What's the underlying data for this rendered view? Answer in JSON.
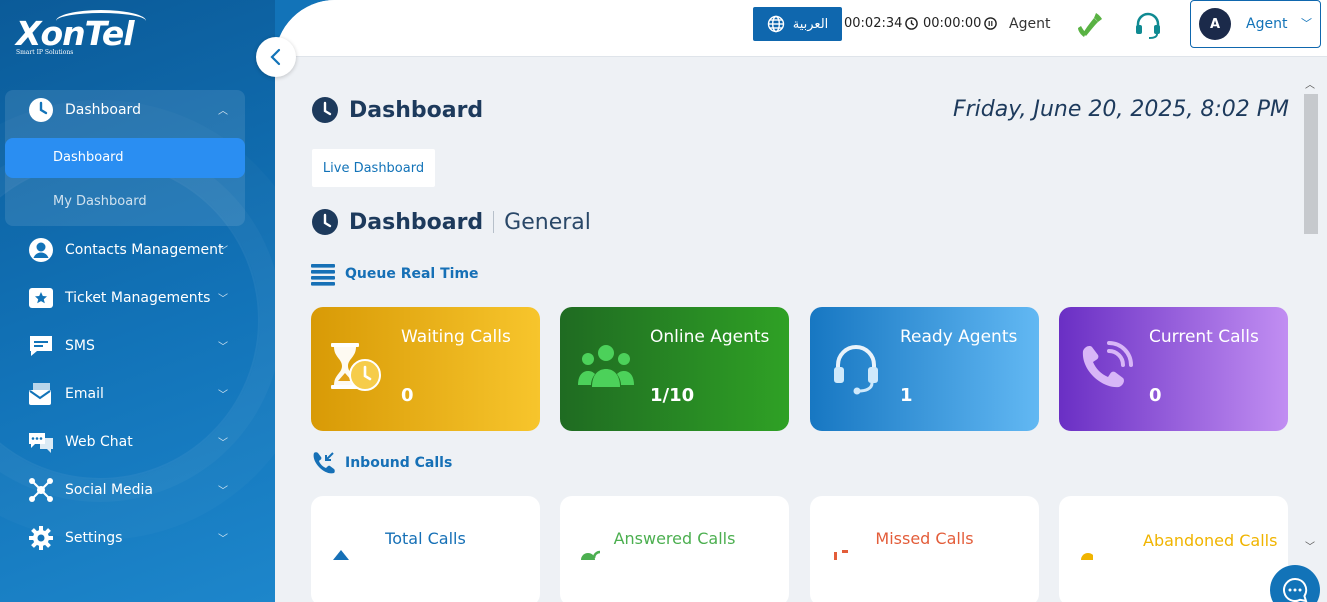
{
  "logo": {
    "brand": "XonTel",
    "tagline": "Smart IP Solutions"
  },
  "sidebar": {
    "items": [
      {
        "label": "Dashboard",
        "icon": "clock-icon"
      },
      {
        "label": "Contacts Management",
        "icon": "user-circle-icon"
      },
      {
        "label": "Ticket Managements",
        "icon": "ticket-star-icon"
      },
      {
        "label": "SMS",
        "icon": "message-icon"
      },
      {
        "label": "Email",
        "icon": "email-icon"
      },
      {
        "label": "Web Chat",
        "icon": "chat-bubbles-icon"
      },
      {
        "label": "Social Media",
        "icon": "network-icon"
      },
      {
        "label": "Settings",
        "icon": "gear-icon"
      }
    ],
    "subitems": [
      {
        "label": "Dashboard",
        "active": true
      },
      {
        "label": "My Dashboard",
        "active": false
      }
    ]
  },
  "topbar": {
    "language_label": "العربية",
    "timer_call": "00:02:34",
    "timer_pause": "00:00:00",
    "role": "Agent",
    "user_initial": "A",
    "user_name": "Agent"
  },
  "page": {
    "title": "Dashboard",
    "datetime": "Friday, June 20, 2025, 8:02 PM",
    "live_button": "Live Dashboard",
    "section_title": "Dashboard",
    "section_subtitle": "General",
    "queue_heading": "Queue Real Time",
    "inbound_heading": "Inbound Calls"
  },
  "queue_cards": [
    {
      "label": "Waiting Calls",
      "value": "0",
      "color_from": "#d89a06",
      "color_to": "#f7c52c"
    },
    {
      "label": "Online Agents",
      "value": "1/10",
      "color_from": "#1f6b22",
      "color_to": "#2fa125"
    },
    {
      "label": "Ready Agents",
      "value": "1",
      "color_from": "#1777c2",
      "color_to": "#62b8f3"
    },
    {
      "label": "Current Calls",
      "value": "0",
      "color_from": "#6a2fc4",
      "color_to": "#c18ef2"
    }
  ],
  "inbound_cards": [
    {
      "label": "Total Calls",
      "color": "#1670b6"
    },
    {
      "label": "Answered Calls",
      "color": "#4caf50"
    },
    {
      "label": "Missed Calls",
      "color": "#e35d3a"
    },
    {
      "label": "Abandoned Calls",
      "color": "#f0b400"
    }
  ]
}
